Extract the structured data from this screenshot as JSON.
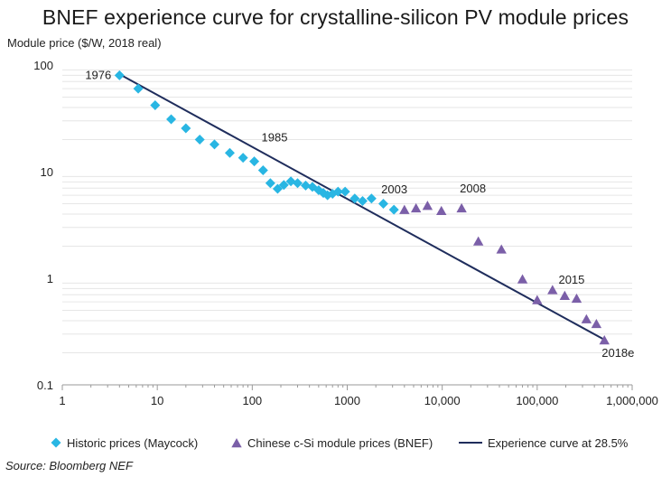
{
  "chart_data": {
    "type": "scatter",
    "title": "BNEF experience curve for crystalline-silicon PV module prices",
    "ylabel": "Module price ($/W, 2018 real)",
    "xlabel": "",
    "x_scale": "log",
    "y_scale": "log",
    "xlim": [
      1,
      1000000
    ],
    "ylim": [
      0.1,
      100
    ],
    "x_ticks": [
      1,
      10,
      100,
      1000,
      10000,
      100000,
      1000000
    ],
    "x_tick_labels": [
      "1",
      "10",
      "100",
      "1000",
      "10,000",
      "100,000",
      "1,000,000"
    ],
    "y_ticks": [
      0.1,
      1,
      10,
      100
    ],
    "y_tick_labels": [
      "0.1",
      "1",
      "10",
      "100"
    ],
    "grid": "horizontal minor",
    "series": [
      {
        "name": "Historic prices (Maycock)",
        "marker": "diamond",
        "color": "#29b6e3",
        "points": [
          [
            4,
            80
          ],
          [
            6.3,
            60
          ],
          [
            9.5,
            42
          ],
          [
            14,
            31
          ],
          [
            20,
            25.5
          ],
          [
            28,
            20
          ],
          [
            40,
            18
          ],
          [
            58,
            15
          ],
          [
            80,
            13.5
          ],
          [
            105,
            12.5
          ],
          [
            130,
            10.3
          ],
          [
            155,
            7.8
          ],
          [
            185,
            6.9
          ],
          [
            215,
            7.5
          ],
          [
            255,
            8.1
          ],
          [
            300,
            7.8
          ],
          [
            365,
            7.4
          ],
          [
            430,
            7.2
          ],
          [
            500,
            6.7
          ],
          [
            560,
            6.3
          ],
          [
            620,
            6.0
          ],
          [
            700,
            6.2
          ],
          [
            800,
            6.5
          ],
          [
            950,
            6.5
          ],
          [
            1200,
            5.6
          ],
          [
            1450,
            5.3
          ],
          [
            1800,
            5.6
          ],
          [
            2400,
            5.0
          ],
          [
            3100,
            4.4
          ]
        ]
      },
      {
        "name": "Chinese c-Si module prices (BNEF)",
        "marker": "triangle",
        "color": "#7b5fa8",
        "points": [
          [
            4000,
            4.35
          ],
          [
            5300,
            4.5
          ],
          [
            7000,
            4.75
          ],
          [
            9800,
            4.25
          ],
          [
            16000,
            4.5
          ],
          [
            24000,
            2.2
          ],
          [
            42000,
            1.85
          ],
          [
            70000,
            0.97
          ],
          [
            100000,
            0.62
          ],
          [
            145000,
            0.77
          ],
          [
            195000,
            0.68
          ],
          [
            260000,
            0.64
          ],
          [
            330000,
            0.41
          ],
          [
            420000,
            0.37
          ],
          [
            510000,
            0.26
          ]
        ]
      },
      {
        "name": "Experience curve at 28.5%",
        "type": "line",
        "color": "#1f2d5c",
        "points": [
          [
            4,
            82
          ],
          [
            510000,
            0.265
          ]
        ]
      }
    ],
    "annotations": [
      {
        "text": "1976",
        "x": 4,
        "y": 80
      },
      {
        "text": "1985",
        "x": 105,
        "y": 12.5
      },
      {
        "text": "2003",
        "x": 3100,
        "y": 4.4
      },
      {
        "text": "2008",
        "x": 16000,
        "y": 4.5
      },
      {
        "text": "2015",
        "x": 260000,
        "y": 0.64
      },
      {
        "text": "2018e",
        "x": 510000,
        "y": 0.26
      }
    ],
    "legend_position": "bottom"
  },
  "title": "BNEF experience curve for crystalline-silicon PV module prices",
  "ylabel": "Module price ($/W, 2018 real)",
  "source": "Source: Bloomberg NEF"
}
